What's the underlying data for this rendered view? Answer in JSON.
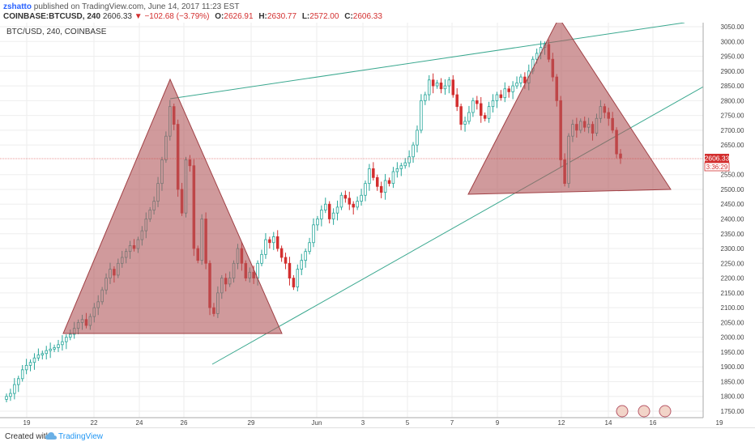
{
  "header": {
    "author": "zshatto",
    "published_text": "published on TradingView.com, June 14, 2017 11:23 EST",
    "symbol": "COINBASE:BTCUSD, 240",
    "last": "2606.33",
    "change": "−102.68 (−3.79%)",
    "open_label": "O:",
    "open": "2626.91",
    "high_label": "H:",
    "high": "2630.77",
    "low_label": "L:",
    "low": "2572.00",
    "close_label": "C:",
    "close": "2606.33"
  },
  "chart": {
    "symbol_label": "BTC/USD, 240, COINBASE",
    "price_label": "2606.33",
    "timer_label": "3:36:29",
    "price_ticks": [
      "1750.00",
      "1800.00",
      "1850.00",
      "1900.00",
      "1950.00",
      "2000.00",
      "2050.00",
      "2100.00",
      "2150.00",
      "2200.00",
      "2250.00",
      "2300.00",
      "2350.00",
      "2400.00",
      "2450.00",
      "2500.00",
      "2550.00",
      "2650.00",
      "2700.00",
      "2750.00",
      "2800.00",
      "2850.00",
      "2900.00",
      "2950.00",
      "3000.00",
      "3050.00"
    ],
    "time_ticks": [
      "19",
      "22",
      "24",
      "26",
      "29",
      "Jun",
      "3",
      "5",
      "7",
      "9",
      "12",
      "14",
      "16",
      "19"
    ],
    "colors": {
      "up": "#26a69a",
      "down": "#d32f2f",
      "triangle": "#b0575a",
      "trend": "#3aa88f",
      "grid": "#eeeeee"
    }
  },
  "chart_data": {
    "type": "candlestick",
    "title": "BTC/USD, 240, COINBASE",
    "ylim": [
      1720,
      3080
    ],
    "last_price": 2606.33,
    "y_ticks": [
      1750,
      1800,
      1850,
      1900,
      1950,
      2000,
      2050,
      2100,
      2150,
      2200,
      2250,
      2300,
      2350,
      2400,
      2450,
      2500,
      2550,
      2650,
      2700,
      2750,
      2800,
      2850,
      2900,
      2950,
      3000,
      3050
    ],
    "closes": [
      1800,
      1810,
      1840,
      1860,
      1890,
      1905,
      1915,
      1930,
      1940,
      1945,
      1955,
      1960,
      1965,
      1975,
      1985,
      2000,
      2010,
      2030,
      2050,
      2060,
      2040,
      2070,
      2100,
      2120,
      2160,
      2200,
      2230,
      2210,
      2250,
      2270,
      2290,
      2310,
      2300,
      2330,
      2360,
      2400,
      2430,
      2460,
      2520,
      2600,
      2680,
      2780,
      2720,
      2500,
      2420,
      2600,
      2580,
      2300,
      2260,
      2400,
      2250,
      2100,
      2080,
      2150,
      2200,
      2180,
      2200,
      2250,
      2300,
      2250,
      2200,
      2220,
      2200,
      2250,
      2280,
      2330,
      2320,
      2340,
      2300,
      2270,
      2250,
      2200,
      2170,
      2230,
      2260,
      2290,
      2320,
      2380,
      2400,
      2430,
      2450,
      2400,
      2420,
      2440,
      2480,
      2470,
      2450,
      2440,
      2460,
      2480,
      2520,
      2570,
      2540,
      2510,
      2490,
      2530,
      2520,
      2560,
      2570,
      2580,
      2590,
      2610,
      2650,
      2700,
      2800,
      2820,
      2870,
      2850,
      2860,
      2840,
      2850,
      2870,
      2820,
      2780,
      2720,
      2730,
      2760,
      2800,
      2790,
      2750,
      2740,
      2780,
      2800,
      2820,
      2810,
      2840,
      2830,
      2850,
      2860,
      2880,
      2860,
      2900,
      2940,
      2960,
      2980,
      2990,
      2940,
      2880,
      2800,
      2600,
      2520,
      2680,
      2720,
      2700,
      2730,
      2710,
      2720,
      2690,
      2740,
      2780,
      2760,
      2740,
      2700,
      2620,
      2606
    ]
  }
}
